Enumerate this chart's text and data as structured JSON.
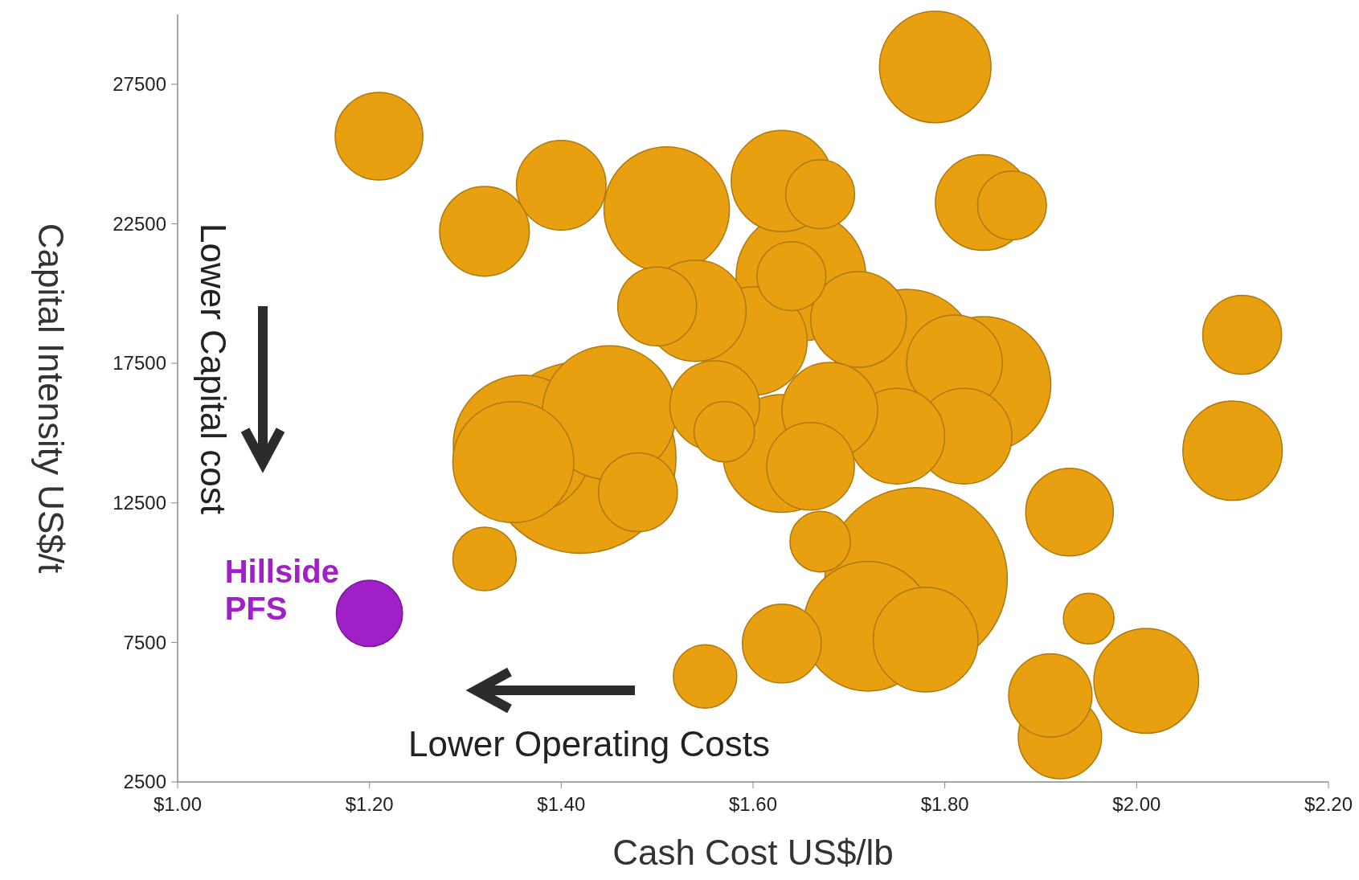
{
  "chart_data": {
    "type": "bubble",
    "xlabel": "Cash Cost US$/lb",
    "ylabel": "Capital Intensity US$/t",
    "xlim": [
      1.0,
      2.2
    ],
    "ylim": [
      2500,
      30000
    ],
    "xticks": [
      {
        "value": 1.0,
        "label": "$1.00"
      },
      {
        "value": 1.2,
        "label": "$1.20"
      },
      {
        "value": 1.4,
        "label": "$1.40"
      },
      {
        "value": 1.6,
        "label": "$1.60"
      },
      {
        "value": 1.8,
        "label": "$1.80"
      },
      {
        "value": 2.0,
        "label": "$2.00"
      },
      {
        "value": 2.2,
        "label": "$2.20"
      }
    ],
    "yticks": [
      2500,
      7500,
      12500,
      17500,
      22500,
      27500
    ],
    "grid": false,
    "annotations": [
      "Lower Capital cost",
      "Lower Operating Costs"
    ],
    "series": [
      {
        "color": "#e8a010",
        "x": [
          1.21,
          1.79,
          1.4,
          1.32,
          1.51,
          1.67,
          1.63,
          1.87,
          1.84,
          1.65,
          1.64,
          1.54,
          1.5,
          1.6,
          1.71,
          1.84,
          1.81,
          1.76,
          2.11,
          2.1,
          1.82,
          1.75,
          1.68,
          1.56,
          1.57,
          1.66,
          1.63,
          1.42,
          1.36,
          1.35,
          1.45,
          1.48,
          1.93,
          1.32,
          1.67,
          1.77,
          1.78,
          1.72,
          1.63,
          1.55,
          1.95,
          2.01,
          1.92,
          1.91
        ],
        "values": [
          25640,
          28120,
          23880,
          22230,
          23010,
          23560,
          24030,
          23160,
          23260,
          20620,
          20620,
          19380,
          19540,
          18300,
          19070,
          16750,
          17520,
          17590,
          18520,
          14370,
          14890,
          14890,
          15820,
          15980,
          15050,
          13810,
          14270,
          14120,
          14580,
          13960,
          15730,
          12880,
          12170,
          10490,
          11110,
          9780,
          7600,
          8080,
          7460,
          6280,
          8350,
          6120,
          4110,
          5600
        ],
        "sizes": [
          0.21,
          0.34,
          0.22,
          0.22,
          0.43,
          0.13,
          0.28,
          0.13,
          0.25,
          0.46,
          0.13,
          0.28,
          0.17,
          0.32,
          0.25,
          0.5,
          0.25,
          0.56,
          0.17,
          0.27,
          0.25,
          0.25,
          0.25,
          0.22,
          0.1,
          0.21,
          0.38,
          1,
          0.53,
          0.4,
          0.49,
          0.17,
          0.21,
          0.11,
          0.1,
          0.91,
          0.3,
          0.46,
          0.17,
          0.11,
          0.07,
          0.3,
          0.19,
          0.19
        ]
      },
      {
        "name": "Hillside PFS",
        "color": "#a020c8",
        "x": [
          1.2
        ],
        "values": [
          8540
        ],
        "sizes": [
          0.12
        ]
      }
    ]
  }
}
